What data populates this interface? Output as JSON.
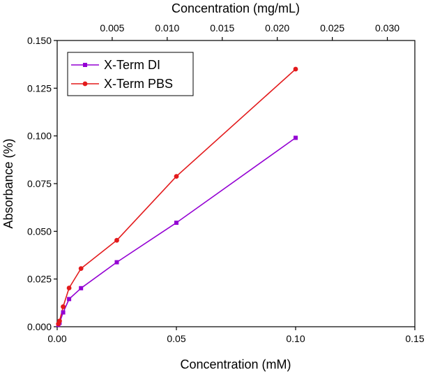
{
  "chart_data": {
    "type": "line",
    "xlabel": "Concentration (mM)",
    "x2label": "Concentration (mg/mL)",
    "ylabel": "Absorbance (%)",
    "xlim": [
      0,
      0.15
    ],
    "x2lim": [
      0,
      0.0325
    ],
    "ylim": [
      0,
      0.15
    ],
    "xticks": [
      0.0,
      0.05,
      0.1,
      0.15
    ],
    "xtick_labels": [
      "0.00",
      "0.05",
      "0.10",
      "0.15"
    ],
    "x2ticks": [
      0.005,
      0.01,
      0.015,
      0.02,
      0.025,
      0.03
    ],
    "x2tick_labels": [
      "0.005",
      "0.010",
      "0.015",
      "0.020",
      "0.025",
      "0.030"
    ],
    "yticks": [
      0.0,
      0.025,
      0.05,
      0.075,
      0.1,
      0.125,
      0.15
    ],
    "ytick_labels": [
      "0.000",
      "0.025",
      "0.050",
      "0.075",
      "0.100",
      "0.125",
      "0.150"
    ],
    "legend_position": "top-left",
    "series": [
      {
        "name": "X-Term DI",
        "color": "#9400d3",
        "marker": "square",
        "x": [
          0.0005,
          0.001,
          0.0025,
          0.005,
          0.01,
          0.025,
          0.05,
          0.1
        ],
        "y": [
          0.001,
          0.002,
          0.0075,
          0.0145,
          0.0202,
          0.0338,
          0.0545,
          0.099
        ]
      },
      {
        "name": "X-Term PBS",
        "color": "#e31a1c",
        "marker": "circle",
        "x": [
          0.0005,
          0.001,
          0.0025,
          0.005,
          0.01,
          0.025,
          0.05,
          0.1
        ],
        "y": [
          0.0015,
          0.003,
          0.0105,
          0.0203,
          0.0305,
          0.0453,
          0.0788,
          0.135
        ]
      }
    ]
  }
}
